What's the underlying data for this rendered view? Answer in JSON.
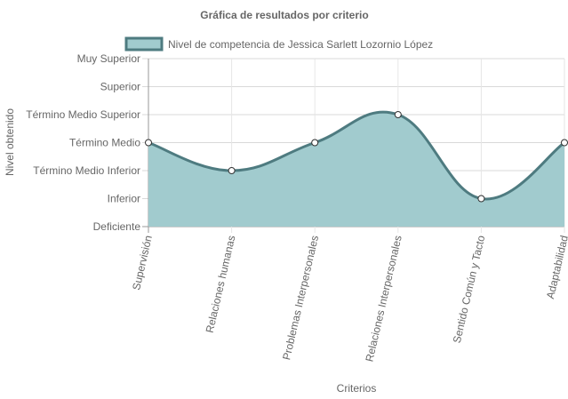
{
  "chart_data": {
    "type": "area",
    "title": "Gráfica de resultados por criterio",
    "xlabel": "Criterios",
    "ylabel": "Nivel obtenido",
    "categories": [
      "Supervisión",
      "Relaciones humanas",
      "Problemas Interpersonales",
      "Relaciones Interpersonales",
      "Sentido Común y Tacto",
      "Adaptabilidad"
    ],
    "y_levels": [
      "Deficiente",
      "Inferior",
      "Término Medio Inferior",
      "Término Medio",
      "Término Medio Superior",
      "Superior",
      "Muy Superior"
    ],
    "ylim": [
      0,
      6
    ],
    "series": [
      {
        "name": "Nivel de competencia de Jessica Sarlett Lozornio López",
        "values": [
          3,
          2,
          3,
          4,
          1,
          3
        ],
        "fill_color": "#a1cbce",
        "line_color": "#4e7b80"
      }
    ],
    "grid": true,
    "legend_position": "top"
  }
}
